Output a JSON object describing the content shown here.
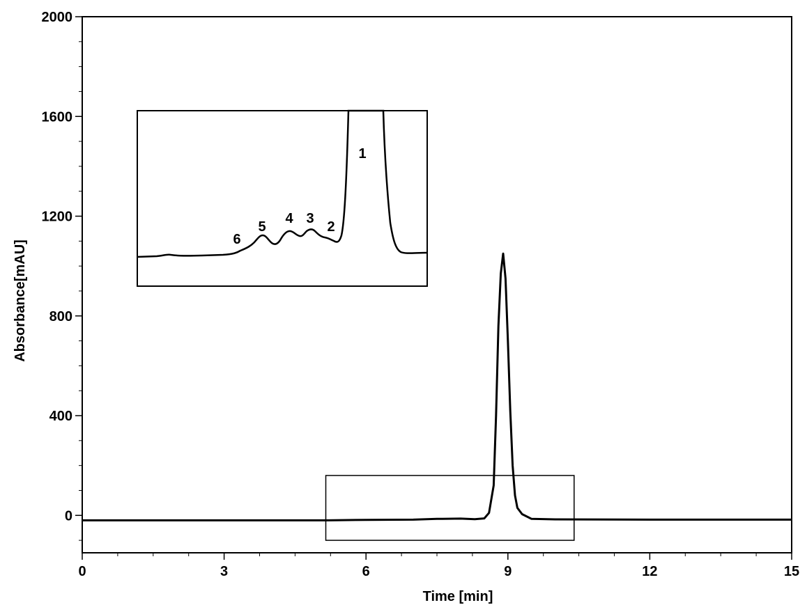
{
  "chart_data": {
    "type": "line",
    "xlabel": "Time [min]",
    "ylabel": "Absorbance[mAU]",
    "xlim": [
      0,
      15
    ],
    "ylim": [
      -150,
      2000
    ],
    "x_ticks": [
      "0",
      "3",
      "6",
      "9",
      "12",
      "15"
    ],
    "y_ticks": [
      "0",
      "400",
      "800",
      "1200",
      "1600",
      "2000"
    ],
    "grid": false,
    "legend": "none",
    "series": [
      {
        "line_color": "#000000",
        "x": [
          0,
          2,
          4,
          5.2,
          6,
          7,
          7.5,
          8.0,
          8.3,
          8.5,
          8.6,
          8.7,
          8.75,
          8.8,
          8.85,
          8.9,
          8.95,
          9.0,
          9.05,
          9.1,
          9.15,
          9.2,
          9.3,
          9.5,
          10,
          12,
          15
        ],
        "y": [
          -20,
          -20,
          -20,
          -20,
          -18,
          -17,
          -14,
          -13,
          -15,
          -12,
          10,
          120,
          400,
          760,
          970,
          1050,
          950,
          700,
          420,
          200,
          80,
          30,
          5,
          -14,
          -16,
          -17,
          -17
        ]
      }
    ],
    "inset": {
      "region_x": [
        5.15,
        10.4
      ],
      "region_y": [
        -100,
        160
      ],
      "peak_labels": [
        "6",
        "5",
        "4",
        "3",
        "2",
        "1"
      ]
    }
  }
}
